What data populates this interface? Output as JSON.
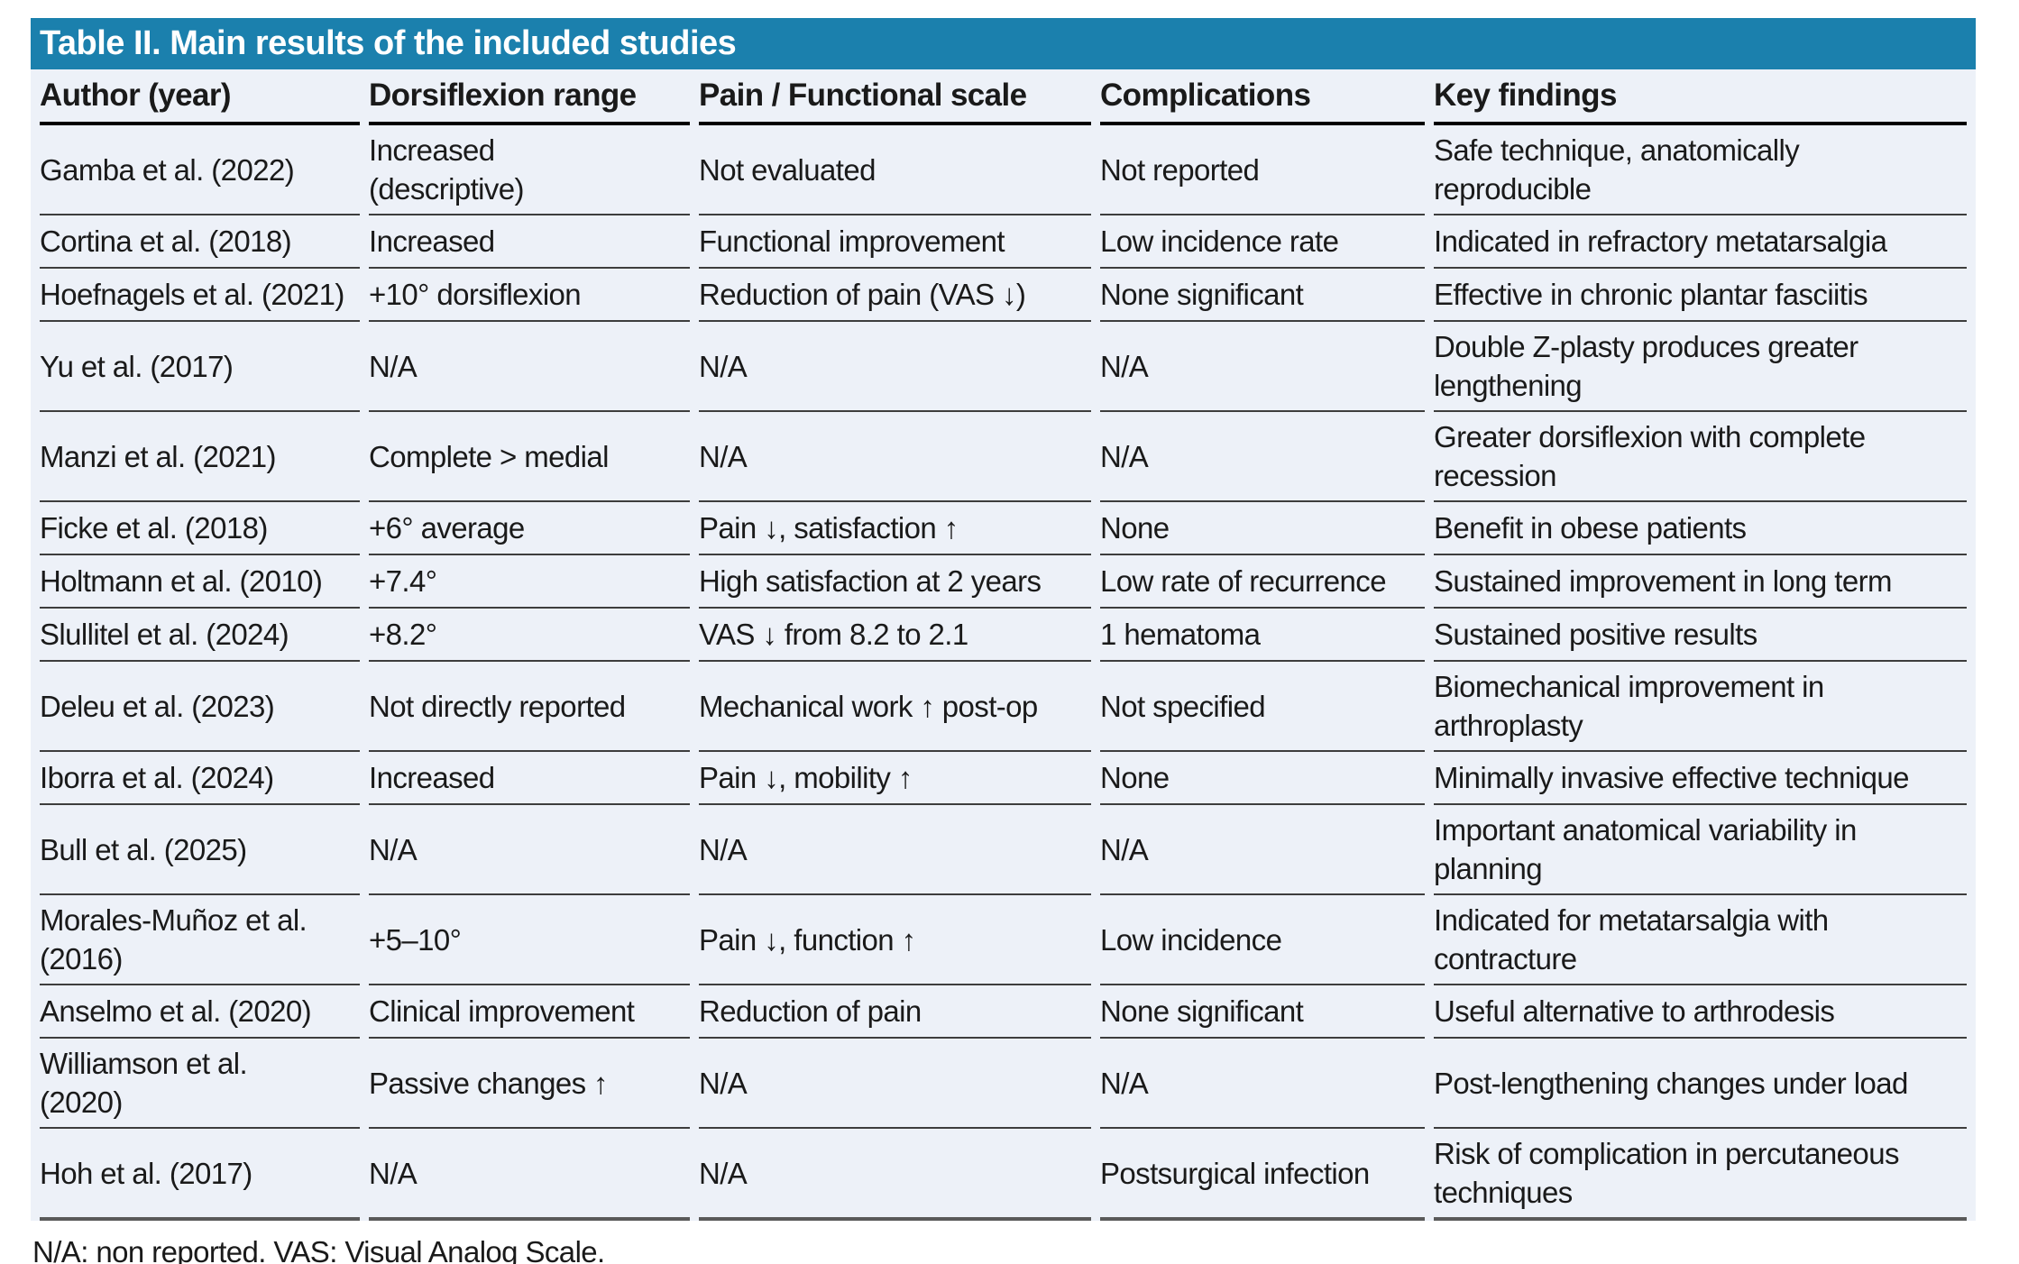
{
  "colors": {
    "title_bg": "#1b80ad",
    "title_text": "#ffffff",
    "row_bg": "#edf1f8",
    "body_text": "#1a1a1a",
    "separator": "#3d3d3d"
  },
  "table": {
    "title": "Table II. Main results of the included studies",
    "columns": [
      "Author (year)",
      "Dorsiflexion range",
      "Pain / Functional scale",
      "Complications",
      "Key findings"
    ],
    "rows": [
      [
        "Gamba et al. (2022)",
        "Increased\n(descriptive)",
        "Not evaluated",
        "Not reported",
        "Safe technique, anatomically\nreproducible"
      ],
      [
        "Cortina et al. (2018)",
        "Increased",
        "Functional improvement",
        "Low incidence rate",
        "Indicated in refractory metatarsalgia"
      ],
      [
        "Hoefnagels et al. (2021)",
        "+10° dorsiflexion",
        "Reduction of pain (VAS ↓)",
        "None significant",
        "Effective in chronic plantar fasciitis"
      ],
      [
        "Yu et al. (2017)",
        "N/A",
        "N/A",
        "N/A",
        "Double Z-plasty produces greater\nlengthening"
      ],
      [
        "Manzi et al. (2021)",
        "Complete > medial",
        "N/A",
        "N/A",
        "Greater dorsiflexion with complete\nrecession"
      ],
      [
        "Ficke et al. (2018)",
        "+6° average",
        "Pain ↓, satisfaction ↑",
        "None",
        "Benefit in obese patients"
      ],
      [
        "Holtmann et al. (2010)",
        "+7.4°",
        "High satisfaction at 2 years",
        "Low rate of recurrence",
        "Sustained improvement in long term"
      ],
      [
        "Slullitel et al. (2024)",
        "+8.2°",
        "VAS ↓ from 8.2 to 2.1",
        "1 hematoma",
        "Sustained positive results"
      ],
      [
        "Deleu et al. (2023)",
        "Not directly reported",
        "Mechanical work ↑ post-op",
        "Not specified",
        "Biomechanical improvement in\narthroplasty"
      ],
      [
        "Iborra et al. (2024)",
        "Increased",
        "Pain ↓, mobility ↑",
        "None",
        "Minimally invasive effective technique"
      ],
      [
        "Bull et al. (2025)",
        "N/A",
        "N/A",
        "N/A",
        "Important anatomical variability in\nplanning"
      ],
      [
        "Morales-Muñoz et al.\n(2016)",
        "+5–10°",
        "Pain ↓, function ↑",
        "Low incidence",
        "Indicated for metatarsalgia with\ncontracture"
      ],
      [
        "Anselmo et al. (2020)",
        "Clinical improvement",
        "Reduction of pain",
        "None significant",
        "Useful alternative to arthrodesis"
      ],
      [
        "Williamson et al.\n(2020)",
        "Passive changes ↑",
        "N/A",
        "N/A",
        "Post-lengthening changes under load"
      ],
      [
        "Hoh et al. (2017)",
        "N/A",
        "N/A",
        "Postsurgical infection",
        "Risk of complication in percutaneous\ntechniques"
      ]
    ],
    "footnote": "N/A: non reported. VAS: Visual Analog Scale."
  }
}
